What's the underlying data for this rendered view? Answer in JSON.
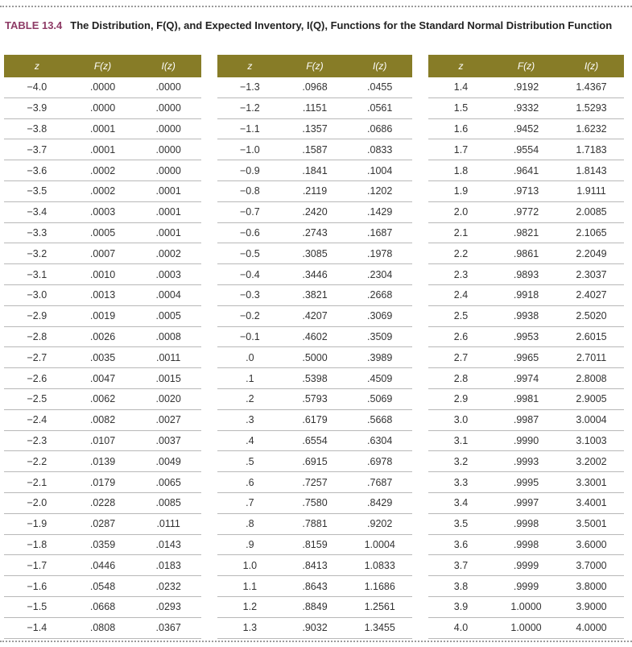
{
  "header": {
    "label": "TABLE 13.4",
    "caption": "The Distribution, F(Q), and Expected Inventory, I(Q), Functions for the Standard Normal Distribution Function"
  },
  "tables": [
    {
      "columns": [
        {
          "heading": "z",
          "cells": [
            "−4.0",
            "−3.9",
            "−3.8",
            "−3.7",
            "−3.6",
            "−3.5",
            "−3.4",
            "−3.3",
            "−3.2",
            "−3.1",
            "−3.0",
            "−2.9",
            "−2.8",
            "−2.7",
            "−2.6",
            "−2.5",
            "−2.4",
            "−2.3",
            "−2.2",
            "−2.1",
            "−2.0",
            "−1.9",
            "−1.8",
            "−1.7",
            "−1.6",
            "−1.5",
            "−1.4"
          ]
        },
        {
          "heading": "F(z)",
          "cells": [
            ".0000",
            ".0000",
            ".0001",
            ".0001",
            ".0002",
            ".0002",
            ".0003",
            ".0005",
            ".0007",
            ".0010",
            ".0013",
            ".0019",
            ".0026",
            ".0035",
            ".0047",
            ".0062",
            ".0082",
            ".0107",
            ".0139",
            ".0179",
            ".0228",
            ".0287",
            ".0359",
            ".0446",
            ".0548",
            ".0668",
            ".0808"
          ]
        },
        {
          "heading": "I(z)",
          "cells": [
            ".0000",
            ".0000",
            ".0000",
            ".0000",
            ".0000",
            ".0001",
            ".0001",
            ".0001",
            ".0002",
            ".0003",
            ".0004",
            ".0005",
            ".0008",
            ".0011",
            ".0015",
            ".0020",
            ".0027",
            ".0037",
            ".0049",
            ".0065",
            ".0085",
            ".0111",
            ".0143",
            ".0183",
            ".0232",
            ".0293",
            ".0367"
          ]
        }
      ]
    },
    {
      "columns": [
        {
          "heading": "z",
          "cells": [
            "−1.3",
            "−1.2",
            "−1.1",
            "−1.0",
            "−0.9",
            "−0.8",
            "−0.7",
            "−0.6",
            "−0.5",
            "−0.4",
            "−0.3",
            "−0.2",
            "−0.1",
            ".0",
            ".1",
            ".2",
            ".3",
            ".4",
            ".5",
            ".6",
            ".7",
            ".8",
            ".9",
            "1.0",
            "1.1",
            "1.2",
            "1.3"
          ]
        },
        {
          "heading": "F(z)",
          "cells": [
            ".0968",
            ".1151",
            ".1357",
            ".1587",
            ".1841",
            ".2119",
            ".2420",
            ".2743",
            ".3085",
            ".3446",
            ".3821",
            ".4207",
            ".4602",
            ".5000",
            ".5398",
            ".5793",
            ".6179",
            ".6554",
            ".6915",
            ".7257",
            ".7580",
            ".7881",
            ".8159",
            ".8413",
            ".8643",
            ".8849",
            ".9032"
          ]
        },
        {
          "heading": "I(z)",
          "cells": [
            ".0455",
            ".0561",
            ".0686",
            ".0833",
            ".1004",
            ".1202",
            ".1429",
            ".1687",
            ".1978",
            ".2304",
            ".2668",
            ".3069",
            ".3509",
            ".3989",
            ".4509",
            ".5069",
            ".5668",
            ".6304",
            ".6978",
            ".7687",
            ".8429",
            ".9202",
            "1.0004",
            "1.0833",
            "1.1686",
            "1.2561",
            "1.3455"
          ]
        }
      ]
    },
    {
      "columns": [
        {
          "heading": "z",
          "cells": [
            "1.4",
            "1.5",
            "1.6",
            "1.7",
            "1.8",
            "1.9",
            "2.0",
            "2.1",
            "2.2",
            "2.3",
            "2.4",
            "2.5",
            "2.6",
            "2.7",
            "2.8",
            "2.9",
            "3.0",
            "3.1",
            "3.2",
            "3.3",
            "3.4",
            "3.5",
            "3.6",
            "3.7",
            "3.8",
            "3.9",
            "4.0"
          ]
        },
        {
          "heading": "F(z)",
          "cells": [
            ".9192",
            ".9332",
            ".9452",
            ".9554",
            ".9641",
            ".9713",
            ".9772",
            ".9821",
            ".9861",
            ".9893",
            ".9918",
            ".9938",
            ".9953",
            ".9965",
            ".9974",
            ".9981",
            ".9987",
            ".9990",
            ".9993",
            ".9995",
            ".9997",
            ".9998",
            ".9998",
            ".9999",
            ".9999",
            "1.0000",
            "1.0000"
          ]
        },
        {
          "heading": "I(z)",
          "cells": [
            "1.4367",
            "1.5293",
            "1.6232",
            "1.7183",
            "1.8143",
            "1.9111",
            "2.0085",
            "2.1065",
            "2.2049",
            "2.3037",
            "2.4027",
            "2.5020",
            "2.6015",
            "2.7011",
            "2.8008",
            "2.9005",
            "3.0004",
            "3.1003",
            "3.2002",
            "3.3001",
            "3.4001",
            "3.5001",
            "3.6000",
            "3.7000",
            "3.8000",
            "3.9000",
            "4.0000"
          ]
        }
      ]
    }
  ]
}
